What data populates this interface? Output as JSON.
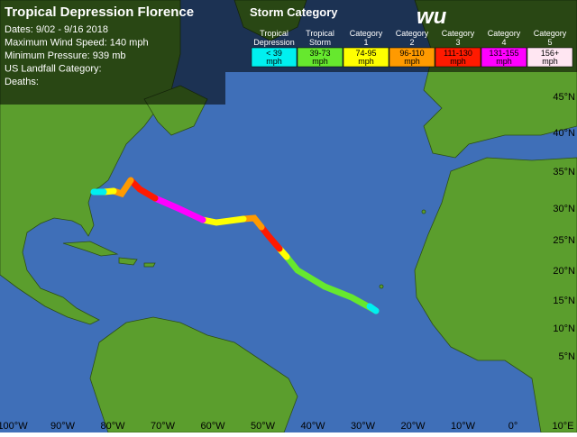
{
  "header": {
    "title": "Tropical Depression Florence",
    "lines": [
      "Dates: 9/02 - 9/16 2018",
      "Maximum Wind Speed: 140 mph",
      "Minimum Pressure: 939 mb",
      "US Landfall Category:",
      "Deaths:"
    ]
  },
  "legend": {
    "title": "Storm Category",
    "items": [
      {
        "name": [
          "Tropical",
          "Depression"
        ],
        "range": [
          "< 39",
          "mph"
        ],
        "color": "#00f0f0"
      },
      {
        "name": [
          "Tropical",
          "Storm"
        ],
        "range": [
          "39-73",
          "mph"
        ],
        "color": "#66e82e"
      },
      {
        "name": [
          "Category",
          "1"
        ],
        "range": [
          "74-95",
          "mph"
        ],
        "color": "#ffff00"
      },
      {
        "name": [
          "Category",
          "2"
        ],
        "range": [
          "96-110",
          "mph"
        ],
        "color": "#ff9a00"
      },
      {
        "name": [
          "Category",
          "3"
        ],
        "range": [
          "111-130",
          "mph"
        ],
        "color": "#ff1a00"
      },
      {
        "name": [
          "Category",
          "4"
        ],
        "range": [
          "131-155",
          "mph"
        ],
        "color": "#ff00ff"
      },
      {
        "name": [
          "Category",
          "5"
        ],
        "range": [
          "156+",
          "mph"
        ],
        "color": "#ffe6f2"
      }
    ]
  },
  "logo": "wu",
  "latitude_labels": [
    "45°N",
    "40°N",
    "35°N",
    "30°N",
    "25°N",
    "20°N",
    "15°N",
    "10°N",
    "5°N"
  ],
  "longitude_labels": [
    "100°W",
    "90°W",
    "80°W",
    "70°W",
    "60°W",
    "50°W",
    "40°W",
    "30°W",
    "20°W",
    "10°W",
    "0°",
    "10°E"
  ]
}
